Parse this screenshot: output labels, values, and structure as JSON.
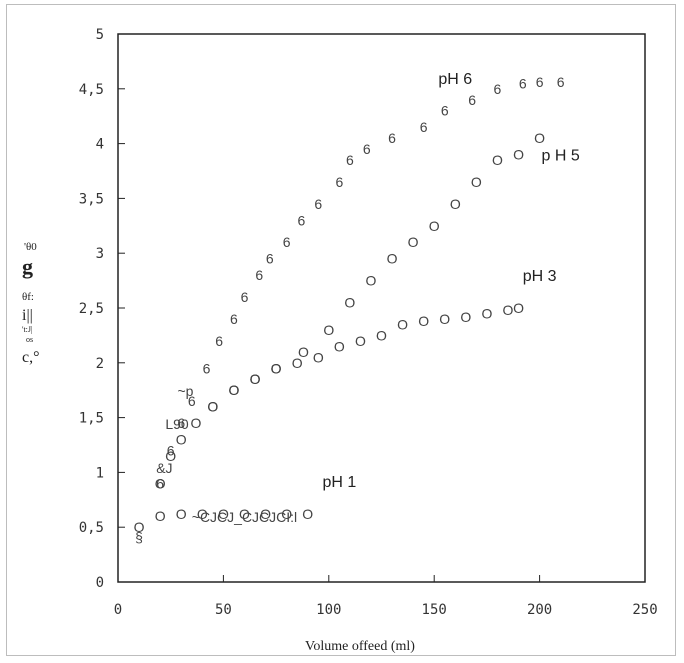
{
  "chart_data": {
    "type": "scatter",
    "title": "",
    "xlabel": "Volume offeed (ml)",
    "ylabel": "",
    "xlim": [
      0,
      250
    ],
    "ylim": [
      0,
      5
    ],
    "x_ticks": [
      "0",
      "50",
      "100",
      "150",
      "200",
      "250"
    ],
    "y_ticks": [
      "0",
      "0,5",
      "1",
      "1,5",
      "2",
      "2,5",
      "3",
      "3,5",
      "4",
      "4,5",
      "5"
    ],
    "grid": false,
    "legend": "none",
    "series": [
      {
        "name": "pH 6",
        "marker": "6",
        "points": [
          [
            20,
            0.9
          ],
          [
            25,
            1.2
          ],
          [
            30,
            1.45
          ],
          [
            35,
            1.65
          ],
          [
            42,
            1.95
          ],
          [
            48,
            2.2
          ],
          [
            55,
            2.4
          ],
          [
            60,
            2.6
          ],
          [
            67,
            2.8
          ],
          [
            72,
            2.95
          ],
          [
            80,
            3.1
          ],
          [
            87,
            3.3
          ],
          [
            95,
            3.45
          ],
          [
            105,
            3.65
          ],
          [
            110,
            3.85
          ],
          [
            118,
            3.95
          ],
          [
            130,
            4.05
          ],
          [
            145,
            4.15
          ],
          [
            155,
            4.3
          ],
          [
            168,
            4.4
          ],
          [
            180,
            4.5
          ],
          [
            192,
            4.55
          ],
          [
            200,
            4.56
          ],
          [
            210,
            4.56
          ]
        ]
      },
      {
        "name": "p H 5",
        "marker": "O",
        "points": [
          [
            20,
            0.9
          ],
          [
            25,
            1.15
          ],
          [
            30,
            1.3
          ],
          [
            37,
            1.45
          ],
          [
            45,
            1.6
          ],
          [
            55,
            1.75
          ],
          [
            65,
            1.85
          ],
          [
            75,
            1.95
          ],
          [
            88,
            2.1
          ],
          [
            100,
            2.3
          ],
          [
            110,
            2.55
          ],
          [
            120,
            2.75
          ],
          [
            130,
            2.95
          ],
          [
            140,
            3.1
          ],
          [
            150,
            3.25
          ],
          [
            160,
            3.45
          ],
          [
            170,
            3.65
          ],
          [
            180,
            3.85
          ],
          [
            190,
            3.9
          ],
          [
            200,
            4.05
          ]
        ]
      },
      {
        "name": "pH 3",
        "marker": "O",
        "points": [
          [
            45,
            1.6
          ],
          [
            55,
            1.75
          ],
          [
            65,
            1.85
          ],
          [
            75,
            1.95
          ],
          [
            85,
            2.0
          ],
          [
            95,
            2.05
          ],
          [
            105,
            2.15
          ],
          [
            115,
            2.2
          ],
          [
            125,
            2.25
          ],
          [
            135,
            2.35
          ],
          [
            145,
            2.38
          ],
          [
            155,
            2.4
          ],
          [
            165,
            2.42
          ],
          [
            175,
            2.45
          ],
          [
            185,
            2.48
          ],
          [
            190,
            2.5
          ]
        ]
      },
      {
        "name": "pH 1",
        "marker": "O",
        "points": [
          [
            10,
            0.5
          ],
          [
            20,
            0.6
          ],
          [
            30,
            0.62
          ],
          [
            40,
            0.62
          ],
          [
            50,
            0.62
          ],
          [
            60,
            0.62
          ],
          [
            70,
            0.62
          ],
          [
            80,
            0.62
          ],
          [
            90,
            0.62
          ]
        ]
      }
    ],
    "annotations": [
      "&J",
      "~p",
      "L90",
      "§",
      "~CJCJ_CJCJCI:l"
    ]
  }
}
